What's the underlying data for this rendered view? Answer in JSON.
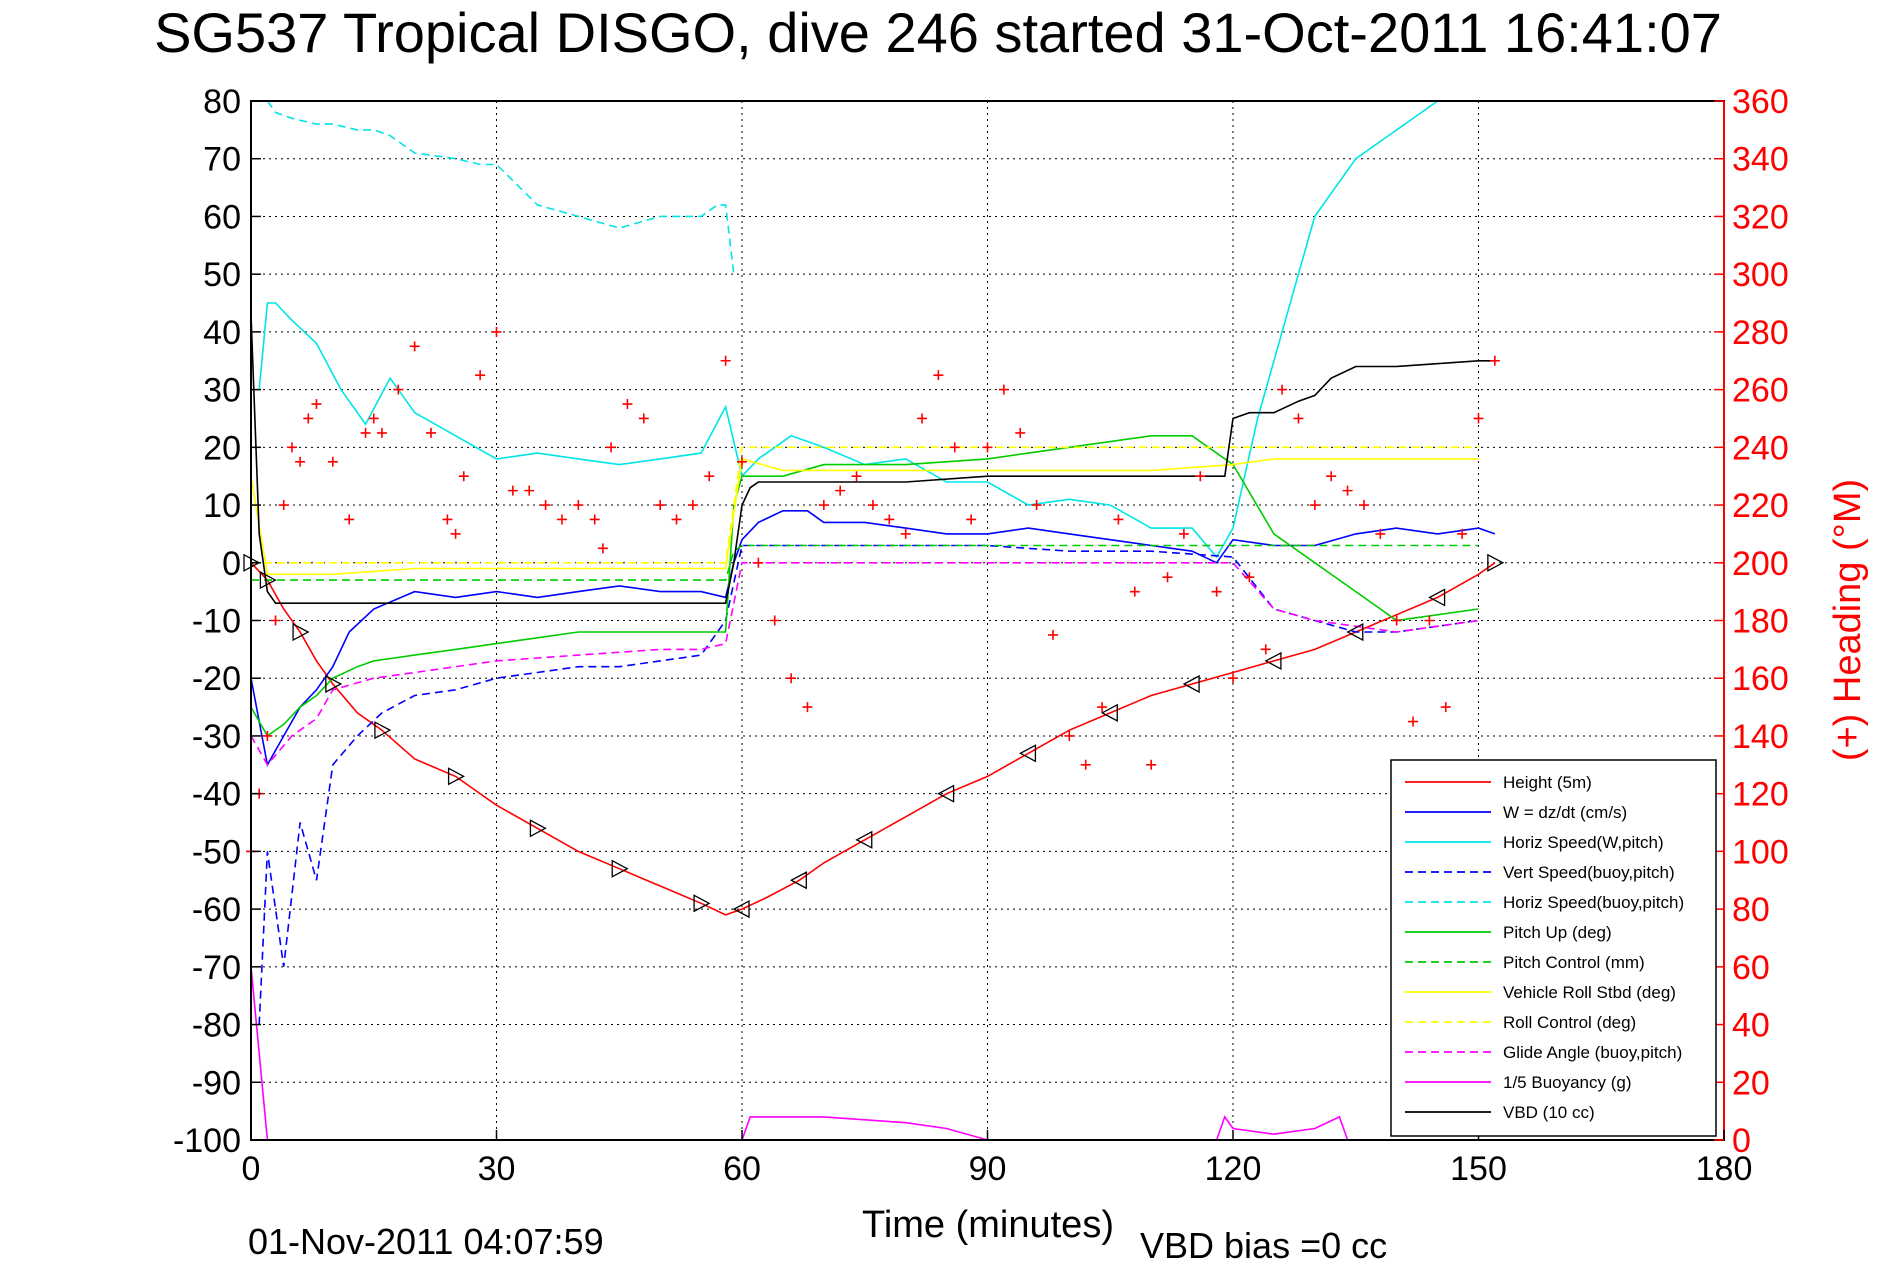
{
  "chart_data": {
    "type": "line",
    "title": "SG537 Tropical DISGO, dive 246 started 31-Oct-2011 16:41:07",
    "xlabel": "Time (minutes)",
    "ylabel_right": "(+) Heading (°M)",
    "xlim": [
      0,
      180
    ],
    "ylim": [
      -100,
      80
    ],
    "ylim_right": [
      0,
      360
    ],
    "xticks": [
      "0",
      "30",
      "60",
      "90",
      "120",
      "150",
      "180"
    ],
    "yticks": [
      "80",
      "70",
      "60",
      "50",
      "40",
      "30",
      "20",
      "10",
      "0",
      "-10",
      "-20",
      "-30",
      "-40",
      "-50",
      "-60",
      "-70",
      "-80",
      "-90",
      "-100"
    ],
    "yticks_right": [
      "360",
      "340",
      "320",
      "300",
      "280",
      "260",
      "240",
      "220",
      "200",
      "180",
      "160",
      "140",
      "120",
      "100",
      "80",
      "60",
      "40",
      "20",
      "0"
    ],
    "grid": true,
    "legend_position": "bottom-right",
    "footer_time": "01-Nov-2011 04:07:59",
    "footer_bias": "VBD bias =0 cc",
    "series": [
      {
        "name": "Height (5m)",
        "color": "#ff0000",
        "style": "solid",
        "x": [
          0,
          2,
          4,
          6,
          8,
          10,
          13,
          16,
          20,
          25,
          30,
          35,
          40,
          45,
          50,
          55,
          58,
          60,
          63,
          67,
          70,
          75,
          80,
          85,
          90,
          95,
          100,
          105,
          110,
          115,
          120,
          125,
          130,
          135,
          140,
          145,
          150,
          152
        ],
        "y": [
          0,
          -3,
          -8,
          -12,
          -17,
          -21,
          -26,
          -29,
          -34,
          -37,
          -42,
          -46,
          -50,
          -53,
          -56,
          -59,
          -61,
          -60,
          -58,
          -55,
          -52,
          -48,
          -44,
          -40,
          -37,
          -33,
          -29,
          -26,
          -23,
          -21,
          -19,
          -17,
          -15,
          -12,
          -9,
          -6,
          -2,
          0
        ]
      },
      {
        "name": "W = dz/dt (cm/s)",
        "color": "#0000ff",
        "style": "solid",
        "x": [
          0,
          2,
          4,
          6,
          8,
          10,
          12,
          15,
          20,
          25,
          30,
          35,
          40,
          45,
          50,
          55,
          58,
          59,
          60,
          62,
          65,
          68,
          70,
          75,
          80,
          85,
          90,
          95,
          100,
          105,
          110,
          115,
          118,
          120,
          125,
          130,
          135,
          140,
          145,
          150,
          152
        ],
        "y": [
          -20,
          -35,
          -30,
          -25,
          -22,
          -18,
          -12,
          -8,
          -5,
          -6,
          -5,
          -6,
          -5,
          -4,
          -5,
          -5,
          -6,
          0,
          4,
          7,
          9,
          9,
          7,
          7,
          6,
          5,
          5,
          6,
          5,
          4,
          3,
          2,
          0,
          4,
          3,
          3,
          5,
          6,
          5,
          6,
          5
        ]
      },
      {
        "name": "Horiz Speed(W,pitch)",
        "color": "#00e5e5",
        "style": "solid",
        "x": [
          1,
          2,
          3,
          5,
          8,
          11,
          14,
          17,
          20,
          25,
          30,
          35,
          40,
          45,
          50,
          55,
          58,
          60,
          62,
          66,
          70,
          75,
          80,
          85,
          90,
          95,
          100,
          105,
          110,
          115,
          118,
          120,
          123,
          126,
          130,
          135,
          140,
          145,
          150,
          152
        ],
        "y": [
          30,
          45,
          45,
          42,
          38,
          30,
          24,
          32,
          26,
          22,
          18,
          19,
          18,
          17,
          18,
          19,
          27,
          15,
          18,
          22,
          20,
          17,
          18,
          14,
          14,
          10,
          11,
          10,
          6,
          6,
          1,
          6,
          25,
          40,
          60,
          70,
          75,
          80,
          80,
          80
        ]
      },
      {
        "name": "Vert Speed(buoy,pitch)",
        "color": "#0000ff",
        "style": "dashed",
        "x": [
          1,
          2,
          4,
          6,
          8,
          10,
          13,
          16,
          20,
          25,
          30,
          35,
          40,
          45,
          50,
          55,
          58,
          60,
          65,
          70,
          80,
          90,
          100,
          110,
          120,
          125,
          130,
          135,
          140,
          150
        ],
        "y": [
          -80,
          -50,
          -70,
          -45,
          -55,
          -35,
          -30,
          -26,
          -23,
          -22,
          -20,
          -19,
          -18,
          -18,
          -17,
          -16,
          -10,
          3,
          3,
          3,
          3,
          3,
          2,
          2,
          1,
          -8,
          -10,
          -12,
          -12,
          -10
        ]
      },
      {
        "name": "Horiz Speed(buoy,pitch)",
        "color": "#00e5e5",
        "style": "dashed",
        "x": [
          2,
          3,
          5,
          8,
          10,
          13,
          15,
          17,
          20,
          25,
          28,
          30,
          35,
          40,
          45,
          50,
          55,
          57,
          58,
          59
        ],
        "y": [
          80,
          78,
          77,
          76,
          76,
          75,
          75,
          74,
          71,
          70,
          69,
          69,
          62,
          60,
          58,
          60,
          60,
          62,
          62,
          50
        ]
      },
      {
        "name": "Pitch Up (deg)",
        "color": "#00cc00",
        "style": "solid",
        "x": [
          0,
          2,
          4,
          6,
          8,
          10,
          13,
          15,
          20,
          25,
          30,
          35,
          40,
          45,
          50,
          55,
          58,
          59,
          60,
          62,
          65,
          70,
          80,
          90,
          95,
          100,
          110,
          115,
          120,
          125,
          135,
          140,
          150
        ],
        "y": [
          -25,
          -30,
          -28,
          -25,
          -23,
          -20,
          -18,
          -17,
          -16,
          -15,
          -14,
          -13,
          -12,
          -12,
          -12,
          -12,
          -12,
          10,
          15,
          15,
          15,
          17,
          17,
          18,
          19,
          20,
          22,
          22,
          17,
          5,
          -5,
          -10,
          -8
        ]
      },
      {
        "name": "Pitch Control (mm)",
        "color": "#00cc00",
        "style": "dashed",
        "x": [
          0,
          5,
          10,
          20,
          30,
          40,
          50,
          58,
          59,
          60,
          70,
          80,
          90,
          100,
          110,
          120,
          130,
          140,
          150
        ],
        "y": [
          -3,
          -3,
          -3,
          -3,
          -3,
          -3,
          -3,
          -3,
          2,
          3,
          3,
          3,
          3,
          3,
          3,
          3,
          3,
          3,
          3
        ]
      },
      {
        "name": "Vehicle Roll Stbd (deg)",
        "color": "#ffff00",
        "style": "solid",
        "x": [
          0,
          2,
          5,
          10,
          20,
          30,
          40,
          50,
          55,
          58,
          60,
          65,
          70,
          80,
          90,
          100,
          110,
          120,
          125,
          130,
          140,
          150
        ],
        "y": [
          15,
          -2,
          -2,
          -2,
          -1,
          -1,
          -1,
          -1,
          -1,
          -1,
          18,
          16,
          16,
          16,
          16,
          16,
          16,
          17,
          18,
          18,
          18,
          18
        ]
      },
      {
        "name": "Roll Control (deg)",
        "color": "#ffff00",
        "style": "dashed",
        "x": [
          0,
          5,
          10,
          20,
          30,
          40,
          50,
          58,
          60,
          70,
          80,
          90,
          100,
          110,
          120,
          130,
          140,
          150
        ],
        "y": [
          0,
          0,
          0,
          0,
          0,
          0,
          0,
          0,
          20,
          20,
          20,
          20,
          20,
          20,
          20,
          20,
          20,
          20
        ]
      },
      {
        "name": "Glide Angle (buoy,pitch)",
        "color": "#ff00ff",
        "style": "dashed",
        "x": [
          0,
          2,
          5,
          8,
          10,
          15,
          20,
          30,
          40,
          50,
          55,
          58,
          60,
          70,
          80,
          90,
          100,
          110,
          120,
          125,
          130,
          140,
          150
        ],
        "y": [
          -30,
          -35,
          -30,
          -27,
          -22,
          -20,
          -19,
          -17,
          -16,
          -15,
          -15,
          -14,
          0,
          0,
          0,
          0,
          0,
          0,
          0,
          -8,
          -10,
          -12,
          -10
        ]
      },
      {
        "name": "1/5 Buoyancy (g)",
        "color": "#ff00ff",
        "style": "solid",
        "x": [
          0,
          1,
          2,
          60,
          61,
          70,
          80,
          85,
          90,
          118,
          119,
          120,
          125,
          130,
          133,
          134,
          135
        ],
        "y": [
          -70,
          -85,
          -100,
          -100,
          -96,
          -96,
          -97,
          -98,
          -100,
          -100,
          -96,
          -98,
          -99,
          -98,
          -96,
          -100,
          -100
        ]
      },
      {
        "name": "VBD (10 cc)",
        "color": "#000000",
        "style": "solid",
        "x": [
          0,
          1,
          2,
          3,
          5,
          10,
          20,
          30,
          40,
          50,
          58,
          59,
          60,
          61,
          62,
          65,
          70,
          80,
          90,
          100,
          110,
          119,
          120,
          122,
          125,
          128,
          130,
          132,
          135,
          140,
          150,
          152
        ],
        "y": [
          43,
          5,
          -5,
          -7,
          -7,
          -7,
          -7,
          -7,
          -7,
          -7,
          -7,
          0,
          10,
          13,
          14,
          14,
          14,
          14,
          15,
          15,
          15,
          15,
          25,
          26,
          26,
          28,
          29,
          32,
          34,
          34,
          35,
          35
        ]
      },
      {
        "name": "Heading",
        "color": "#ff0000",
        "style": "markers",
        "axis": "right",
        "x": [
          0,
          1,
          2,
          3,
          4,
          5,
          6,
          7,
          8,
          10,
          12,
          14,
          15,
          16,
          18,
          20,
          22,
          24,
          25,
          26,
          28,
          30,
          32,
          34,
          36,
          38,
          40,
          42,
          43,
          44,
          46,
          48,
          50,
          52,
          54,
          56,
          58,
          60,
          62,
          64,
          66,
          68,
          70,
          72,
          74,
          76,
          78,
          80,
          82,
          84,
          86,
          88,
          90,
          92,
          94,
          96,
          98,
          100,
          102,
          104,
          106,
          108,
          110,
          112,
          114,
          116,
          118,
          120,
          122,
          124,
          126,
          128,
          130,
          132,
          134,
          136,
          138,
          140,
          142,
          144,
          146,
          148,
          150,
          152
        ],
        "y": [
          100,
          120,
          140,
          180,
          220,
          240,
          235,
          250,
          255,
          235,
          215,
          245,
          250,
          245,
          260,
          275,
          245,
          215,
          210,
          230,
          265,
          280,
          225,
          225,
          220,
          215,
          220,
          215,
          205,
          240,
          255,
          250,
          220,
          215,
          220,
          230,
          270,
          235,
          200,
          180,
          160,
          150,
          220,
          225,
          230,
          220,
          215,
          210,
          250,
          265,
          240,
          215,
          240,
          260,
          245,
          220,
          175,
          140,
          130,
          150,
          215,
          190,
          130,
          195,
          210,
          230,
          190,
          160,
          195,
          170,
          260,
          250,
          220,
          230,
          225,
          220,
          210,
          180,
          145,
          180,
          150,
          210,
          250,
          270
        ]
      }
    ]
  }
}
